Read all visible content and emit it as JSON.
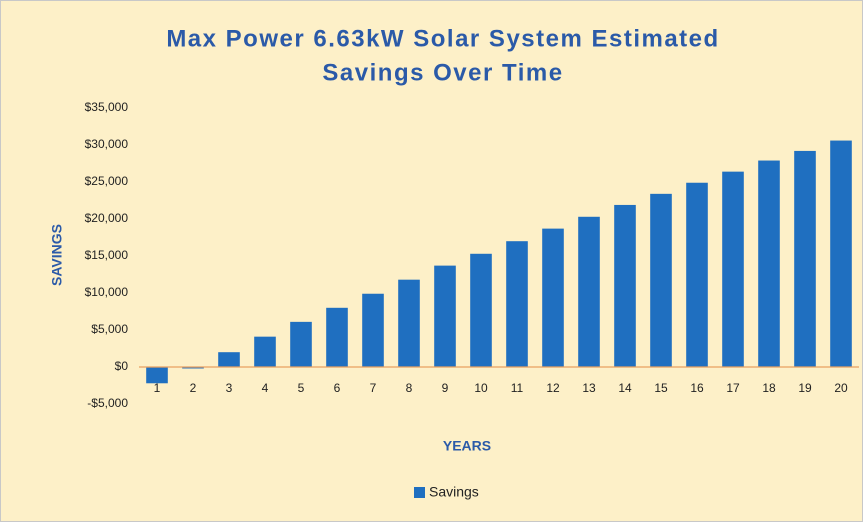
{
  "chart_data": {
    "type": "bar",
    "title": "Max Power 6.63kW Solar System Estimated Savings Over Time",
    "x_label": "YEARS",
    "y_label": "SAVINGS",
    "categories": [
      "1",
      "2",
      "3",
      "4",
      "5",
      "6",
      "7",
      "8",
      "9",
      "10",
      "11",
      "12",
      "13",
      "14",
      "15",
      "16",
      "17",
      "18",
      "19",
      "20"
    ],
    "series": [
      {
        "name": "Savings",
        "color": "#1f6fc0",
        "values": [
          -2200,
          -200,
          2000,
          4100,
          6100,
          8000,
          9900,
          11800,
          13700,
          15300,
          17000,
          18700,
          20300,
          21900,
          23400,
          24900,
          26400,
          27900,
          29200,
          30600
        ]
      }
    ],
    "ylim": [
      -5000,
      35000
    ],
    "yticks": [
      {
        "value": -5000,
        "label": "-$5,000"
      },
      {
        "value": 0,
        "label": "$0"
      },
      {
        "value": 5000,
        "label": "$5,000"
      },
      {
        "value": 10000,
        "label": "$10,000"
      },
      {
        "value": 15000,
        "label": "$15,000"
      },
      {
        "value": 20000,
        "label": "$20,000"
      },
      {
        "value": 25000,
        "label": "$25,000"
      },
      {
        "value": 30000,
        "label": "$30,000"
      },
      {
        "value": 35000,
        "label": "$35,000"
      }
    ],
    "grid": false,
    "legend": "bottom"
  }
}
